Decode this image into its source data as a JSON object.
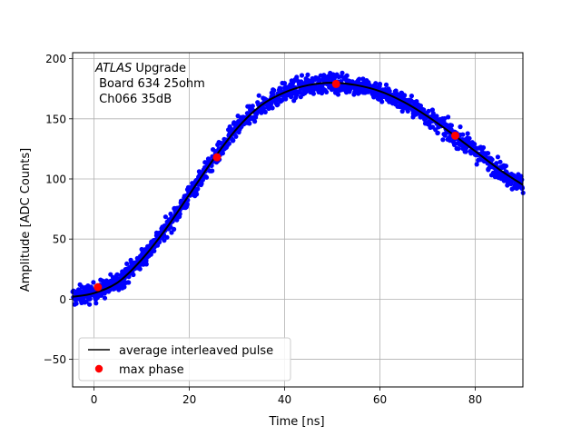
{
  "chart_data": {
    "type": "scatter",
    "xlabel": "Time [ns]",
    "ylabel": "Amplitude [ADC Counts]",
    "xlim": [
      -4.5,
      90
    ],
    "ylim": [
      -73,
      205
    ],
    "xticks": [
      0,
      20,
      40,
      60,
      80
    ],
    "yticks": [
      -50,
      0,
      50,
      100,
      150,
      200
    ],
    "grid": true,
    "annotation": {
      "line1_italic": "ATLAS",
      "line1_rest": " Upgrade",
      "line2": " Board 634 25ohm",
      "line3": " Ch066 35dB"
    },
    "legend": {
      "placement": "lower-left",
      "entries": [
        {
          "label": "average interleaved pulse",
          "color": "#000000",
          "marker": "line"
        },
        {
          "label": "max phase",
          "color": "#ff0000",
          "marker": "circle"
        }
      ]
    },
    "series": [
      {
        "kind": "scatter",
        "color": "#0000ff",
        "description_points": "dense sampled pulse points around average curve",
        "x_range": [
          -4.5,
          90
        ],
        "count": 1400,
        "noise_amplitude": 4
      },
      {
        "kind": "line",
        "label": "average interleaved pulse",
        "color": "#000000",
        "x": [
          -4.5,
          0,
          5,
          10,
          15,
          20,
          25,
          30,
          35,
          40,
          45,
          50,
          55,
          60,
          65,
          70,
          75,
          80,
          85,
          90
        ],
        "y": [
          2,
          5,
          14,
          33,
          58,
          87,
          116,
          142,
          161,
          172,
          178,
          180,
          178,
          173,
          164,
          152,
          138,
          123,
          108,
          95
        ]
      },
      {
        "kind": "scatter",
        "label": "max phase",
        "color": "#ff0000",
        "x": [
          0.8,
          25.8,
          50.8,
          75.8
        ],
        "y": [
          10,
          118,
          179,
          136
        ]
      }
    ]
  }
}
